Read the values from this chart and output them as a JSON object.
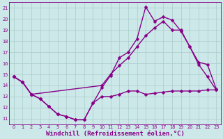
{
  "bg_color": "#cce8e8",
  "line_color": "#880088",
  "marker": "D",
  "markersize": 2.5,
  "linewidth": 1.0,
  "xlabel": "Windchill (Refroidissement éolien,°C)",
  "xlabel_fontsize": 6.5,
  "ylabel_ticks": [
    11,
    12,
    13,
    14,
    15,
    16,
    17,
    18,
    19,
    20,
    21
  ],
  "xlabel_ticks": [
    0,
    1,
    2,
    3,
    4,
    5,
    6,
    7,
    8,
    9,
    10,
    11,
    12,
    13,
    14,
    15,
    16,
    17,
    18,
    19,
    20,
    21,
    22,
    23
  ],
  "xlim": [
    -0.5,
    23.5
  ],
  "ylim": [
    10.5,
    21.5
  ],
  "grid_color": "#aacccc",
  "line1_x": [
    0,
    1,
    2,
    3,
    4,
    5,
    6,
    7,
    8,
    9,
    10,
    11,
    12,
    13,
    14,
    15,
    16,
    17,
    18,
    19,
    20,
    21,
    22,
    23
  ],
  "line1_y": [
    14.8,
    14.3,
    13.2,
    12.8,
    12.1,
    11.4,
    11.2,
    10.9,
    10.9,
    12.4,
    13.8,
    14.9,
    16.5,
    17.0,
    18.2,
    21.1,
    19.8,
    20.2,
    19.9,
    18.9,
    17.5,
    16.1,
    15.9,
    13.7
  ],
  "line2_x": [
    0,
    1,
    2,
    10,
    11,
    12,
    13,
    14,
    15,
    16,
    17,
    18,
    19,
    20,
    21,
    22,
    23
  ],
  "line2_y": [
    14.8,
    14.3,
    13.2,
    14.0,
    15.0,
    15.8,
    16.5,
    17.5,
    18.5,
    19.2,
    19.8,
    19.0,
    19.0,
    17.5,
    15.9,
    14.8,
    13.6
  ],
  "line3_x": [
    0,
    1,
    2,
    3,
    4,
    5,
    6,
    7,
    8,
    9,
    10,
    11,
    12,
    13,
    14,
    15,
    16,
    17,
    18,
    19,
    20,
    21,
    22,
    23
  ],
  "line3_y": [
    14.8,
    14.3,
    13.2,
    12.8,
    12.1,
    11.4,
    11.2,
    10.9,
    10.9,
    12.4,
    13.0,
    13.0,
    13.2,
    13.5,
    13.5,
    13.2,
    13.3,
    13.4,
    13.5,
    13.5,
    13.5,
    13.5,
    13.6,
    13.6
  ]
}
